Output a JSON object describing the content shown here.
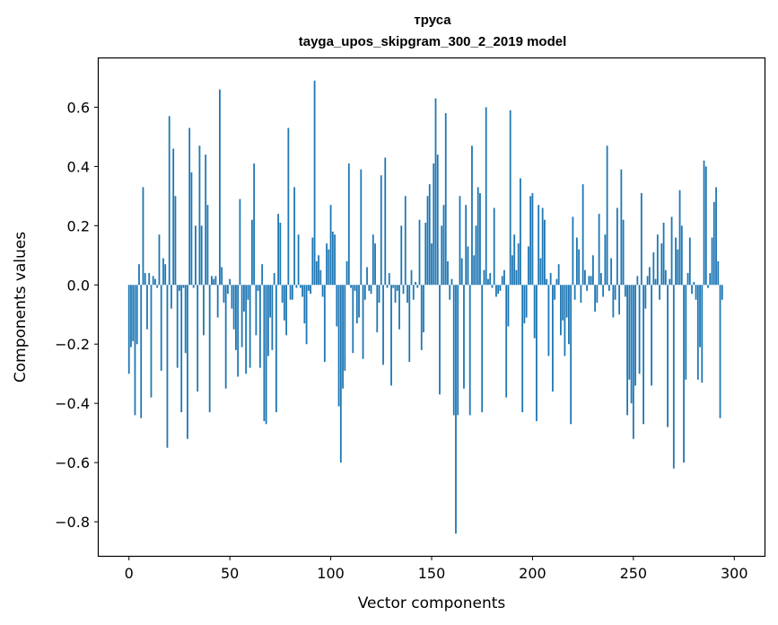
{
  "chart_data": {
    "type": "bar",
    "title": "труса",
    "subtitle": "tayga_upos_skipgram_300_2_2019 model",
    "xlabel": "Vector components",
    "ylabel": "Components values",
    "xlim": [
      -15,
      315
    ],
    "ylim": [
      -0.915,
      0.765
    ],
    "xticks": [
      0,
      50,
      100,
      150,
      200,
      250,
      300
    ],
    "yticks": [
      -0.8,
      -0.6,
      -0.4,
      -0.2,
      0.0,
      0.2,
      0.4,
      0.6
    ],
    "xtick_labels": [
      "0",
      "50",
      "100",
      "150",
      "200",
      "250",
      "300"
    ],
    "ytick_labels": [
      "−0.8",
      "−0.6",
      "−0.4",
      "−0.2",
      "0.0",
      "0.2",
      "0.4",
      "0.6"
    ],
    "bar_color": "#1f77b4",
    "values": [
      -0.3,
      -0.21,
      -0.19,
      -0.44,
      -0.2,
      0.07,
      -0.45,
      0.33,
      0.04,
      -0.15,
      0.04,
      -0.38,
      0.03,
      0.02,
      -0.01,
      0.17,
      -0.29,
      0.09,
      0.07,
      -0.55,
      0.57,
      -0.08,
      0.46,
      0.3,
      -0.28,
      -0.02,
      -0.43,
      -0.01,
      -0.23,
      -0.52,
      0.53,
      0.38,
      -0.01,
      0.2,
      -0.36,
      0.47,
      0.2,
      -0.17,
      0.44,
      0.27,
      -0.43,
      0.03,
      0.02,
      0.03,
      -0.11,
      0.66,
      0.06,
      -0.06,
      -0.35,
      -0.03,
      0.02,
      -0.08,
      -0.15,
      -0.22,
      -0.31,
      0.29,
      -0.21,
      -0.09,
      -0.3,
      -0.05,
      -0.28,
      0.22,
      0.41,
      -0.17,
      -0.02,
      -0.28,
      0.07,
      -0.46,
      -0.47,
      -0.24,
      -0.11,
      -0.22,
      0.04,
      -0.43,
      0.24,
      0.21,
      -0.06,
      -0.12,
      -0.17,
      0.53,
      -0.05,
      -0.05,
      0.33,
      -0.01,
      0.17,
      -0.01,
      -0.04,
      -0.13,
      -0.2,
      -0.02,
      -0.03,
      0.16,
      0.69,
      0.08,
      0.1,
      0.05,
      -0.04,
      -0.26,
      0.14,
      0.12,
      0.27,
      0.18,
      0.17,
      -0.14,
      -0.41,
      -0.6,
      -0.35,
      -0.29,
      0.08,
      0.41,
      -0.01,
      -0.23,
      -0.02,
      -0.13,
      -0.11,
      0.39,
      -0.25,
      -0.05,
      0.06,
      -0.02,
      -0.03,
      0.17,
      0.14,
      -0.16,
      -0.06,
      0.37,
      -0.27,
      0.43,
      -0.01,
      0.04,
      -0.34,
      -0.01,
      -0.06,
      -0.02,
      -0.15,
      0.2,
      -0.03,
      0.3,
      -0.06,
      -0.26,
      0.05,
      -0.05,
      0.01,
      -0.01,
      0.22,
      -0.22,
      -0.16,
      0.21,
      0.3,
      0.34,
      0.14,
      0.41,
      0.63,
      0.44,
      -0.37,
      0.2,
      0.27,
      0.58,
      0.08,
      -0.05,
      0.02,
      -0.44,
      -0.84,
      -0.44,
      0.3,
      0.09,
      -0.35,
      0.27,
      0.13,
      -0.44,
      0.47,
      0.1,
      0.2,
      0.33,
      0.31,
      -0.43,
      0.05,
      0.6,
      0.02,
      0.04,
      -0.01,
      0.26,
      -0.04,
      -0.03,
      -0.02,
      0.03,
      0.05,
      -0.38,
      -0.14,
      0.59,
      0.1,
      0.17,
      0.05,
      0.14,
      0.36,
      -0.43,
      -0.13,
      -0.11,
      0.13,
      0.3,
      0.31,
      -0.18,
      -0.46,
      0.27,
      0.09,
      0.26,
      0.22,
      0.02,
      -0.24,
      0.04,
      -0.36,
      -0.05,
      0.02,
      0.07,
      -0.17,
      -0.12,
      -0.24,
      -0.11,
      -0.2,
      -0.47,
      0.23,
      -0.05,
      0.16,
      0.12,
      -0.06,
      0.34,
      0.05,
      -0.02,
      0.03,
      0.03,
      0.1,
      -0.09,
      -0.06,
      0.24,
      0.04,
      -0.04,
      0.17,
      0.47,
      -0.02,
      0.09,
      -0.11,
      -0.05,
      0.26,
      -0.1,
      0.39,
      0.22,
      -0.04,
      -0.44,
      -0.32,
      -0.4,
      -0.52,
      -0.34,
      0.03,
      -0.3,
      0.31,
      -0.47,
      -0.08,
      0.03,
      0.06,
      -0.34,
      0.11,
      0.02,
      0.17,
      -0.05,
      0.14,
      0.21,
      0.05,
      -0.48,
      0.02,
      0.23,
      -0.62,
      0.16,
      0.12,
      0.32,
      0.2,
      -0.6,
      -0.32,
      0.04,
      0.16,
      -0.03,
      0.01,
      -0.05,
      -0.32,
      -0.21,
      -0.33,
      0.42,
      0.4,
      -0.01,
      0.04,
      0.16,
      0.28,
      0.33,
      0.08,
      -0.45,
      -0.05
    ]
  }
}
